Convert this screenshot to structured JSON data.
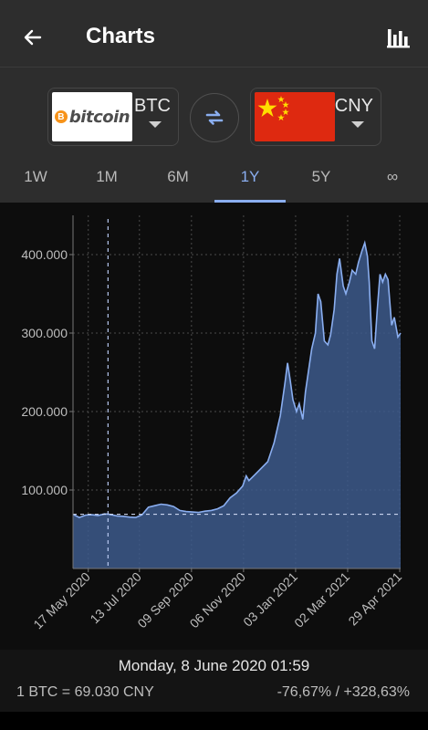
{
  "app": {
    "title": "Charts"
  },
  "icons": {
    "back": "arrow-left-icon",
    "chart": "bar-chart-icon",
    "swap": "swap-arrows-icon"
  },
  "pair": {
    "from": {
      "code": "BTC",
      "logo_text": "bitcoin",
      "logo_symbol": "B"
    },
    "to": {
      "code": "CNY"
    }
  },
  "tabs": [
    {
      "label": "1W"
    },
    {
      "label": "1M"
    },
    {
      "label": "6M"
    },
    {
      "label": "1Y",
      "active": true
    },
    {
      "label": "5Y"
    },
    {
      "label": "∞"
    }
  ],
  "chart_data": {
    "type": "area",
    "y_ticks": [
      "100.000",
      "200.000",
      "300.000",
      "400.000"
    ],
    "ylim": [
      0,
      450000
    ],
    "x_tick_labels": [
      "17 May 2020",
      "13 Jul 2020",
      "09 Sep 2020",
      "06 Nov 2020",
      "03 Jan 2021",
      "02 Mar 2021",
      "29 Apr 2021"
    ],
    "x_range": [
      "2020-04-30",
      "2021-04-30"
    ],
    "selected": {
      "date": "2020-06-08",
      "value": 69030
    },
    "reference_value": 69030,
    "grid": true,
    "line_color": "#8aaef0",
    "fill_color": "#3d5a8c",
    "series": [
      {
        "values": [
          [
            0,
            69000
          ],
          [
            7,
            65000
          ],
          [
            14,
            68000
          ],
          [
            21,
            68500
          ],
          [
            28,
            67500
          ],
          [
            35,
            69500
          ],
          [
            40,
            69030
          ],
          [
            49,
            67000
          ],
          [
            56,
            66500
          ],
          [
            63,
            65500
          ],
          [
            70,
            65000
          ],
          [
            77,
            68500
          ],
          [
            84,
            78000
          ],
          [
            91,
            80000
          ],
          [
            98,
            82000
          ],
          [
            105,
            81000
          ],
          [
            112,
            79000
          ],
          [
            119,
            74000
          ],
          [
            126,
            72500
          ],
          [
            133,
            72000
          ],
          [
            140,
            71500
          ],
          [
            147,
            73000
          ],
          [
            154,
            74000
          ],
          [
            161,
            76000
          ],
          [
            168,
            80000
          ],
          [
            175,
            90000
          ],
          [
            182,
            96000
          ],
          [
            189,
            105000
          ],
          [
            193,
            118000
          ],
          [
            196,
            112000
          ],
          [
            203,
            120000
          ],
          [
            210,
            128000
          ],
          [
            217,
            136000
          ],
          [
            224,
            160000
          ],
          [
            231,
            195000
          ],
          [
            236,
            235000
          ],
          [
            239,
            262000
          ],
          [
            242,
            240000
          ],
          [
            245,
            215000
          ],
          [
            249,
            200000
          ],
          [
            252,
            210000
          ],
          [
            256,
            190000
          ],
          [
            259,
            225000
          ],
          [
            266,
            280000
          ],
          [
            270,
            300000
          ],
          [
            273,
            350000
          ],
          [
            276,
            340000
          ],
          [
            280,
            290000
          ],
          [
            284,
            285000
          ],
          [
            287,
            298000
          ],
          [
            291,
            330000
          ],
          [
            294,
            375000
          ],
          [
            297,
            395000
          ],
          [
            301,
            360000
          ],
          [
            304,
            350000
          ],
          [
            308,
            365000
          ],
          [
            311,
            380000
          ],
          [
            315,
            375000
          ],
          [
            318,
            390000
          ],
          [
            322,
            405000
          ],
          [
            325,
            415000
          ],
          [
            328,
            398000
          ],
          [
            330,
            365000
          ],
          [
            333,
            290000
          ],
          [
            336,
            280000
          ],
          [
            339,
            330000
          ],
          [
            342,
            375000
          ],
          [
            345,
            365000
          ],
          [
            348,
            375000
          ],
          [
            351,
            368000
          ],
          [
            355,
            310000
          ],
          [
            358,
            320000
          ],
          [
            362,
            295000
          ],
          [
            365,
            300000
          ]
        ]
      }
    ]
  },
  "footer": {
    "selected_date": "Monday, 8 June 2020 01:59",
    "rate": "1 BTC = 69.030 CNY",
    "change": "-76,67% / +328,63%"
  }
}
